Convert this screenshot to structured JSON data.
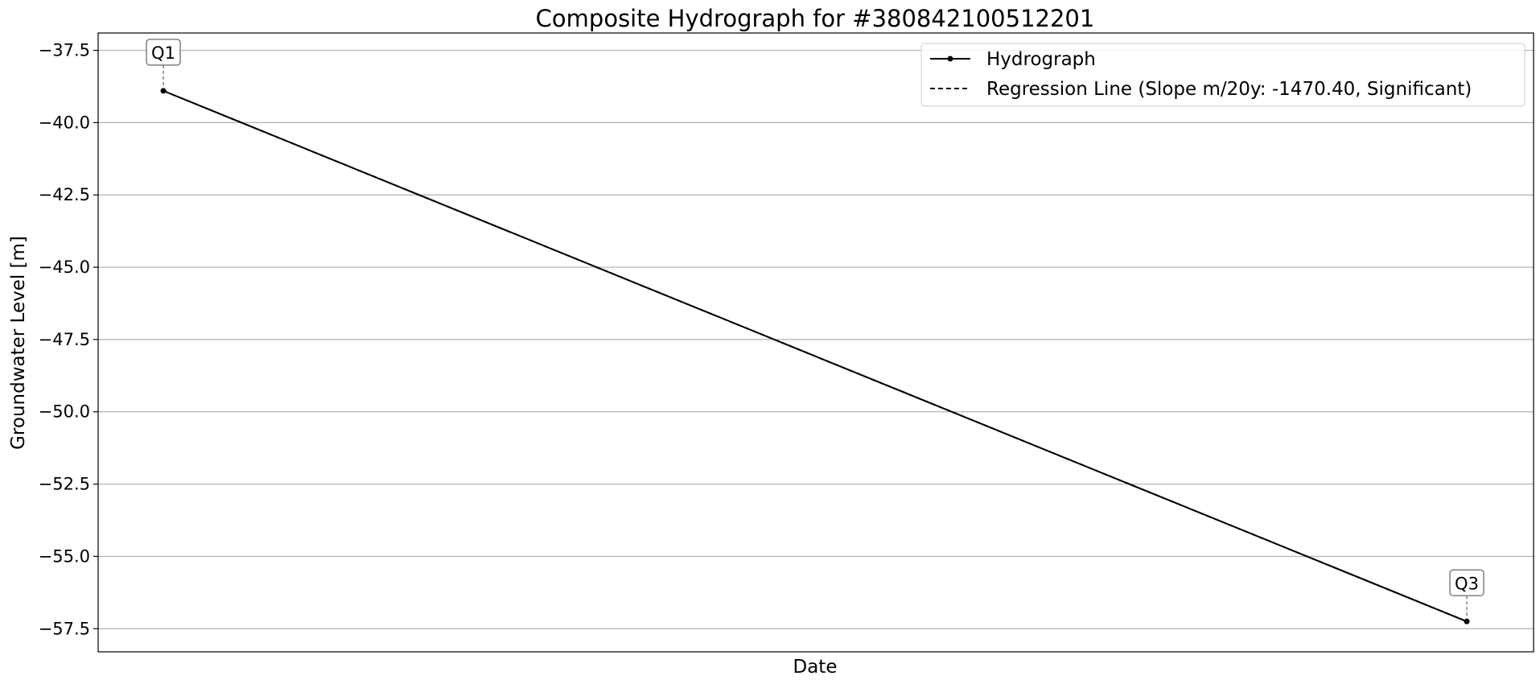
{
  "chart_data": {
    "type": "line",
    "title": "Composite Hydrograph for  #380842100512201",
    "xlabel": "Date",
    "ylabel": "Groundwater Level [m]",
    "ylim": [
      -58.3,
      -36.9
    ],
    "yticks": [
      -37.5,
      -40.0,
      -42.5,
      -45.0,
      -47.5,
      -50.0,
      -52.5,
      -55.0,
      -57.5
    ],
    "ytick_labels": [
      "−37.5",
      "−40.0",
      "−42.5",
      "−45.0",
      "−47.5",
      "−50.0",
      "−52.5",
      "−55.0",
      "−57.5"
    ],
    "grid": "horizontal",
    "legend_position": "top-right",
    "series": [
      {
        "name": "Hydrograph",
        "style": "solid",
        "marker": "dot",
        "color": "#000000",
        "points": [
          {
            "label": "Q1",
            "y": -38.9
          },
          {
            "label": "Q3",
            "y": -57.25
          }
        ]
      },
      {
        "name": "Regression Line (Slope m/20y: -1470.40, Significant)",
        "style": "dashed",
        "color": "#000000"
      }
    ]
  }
}
